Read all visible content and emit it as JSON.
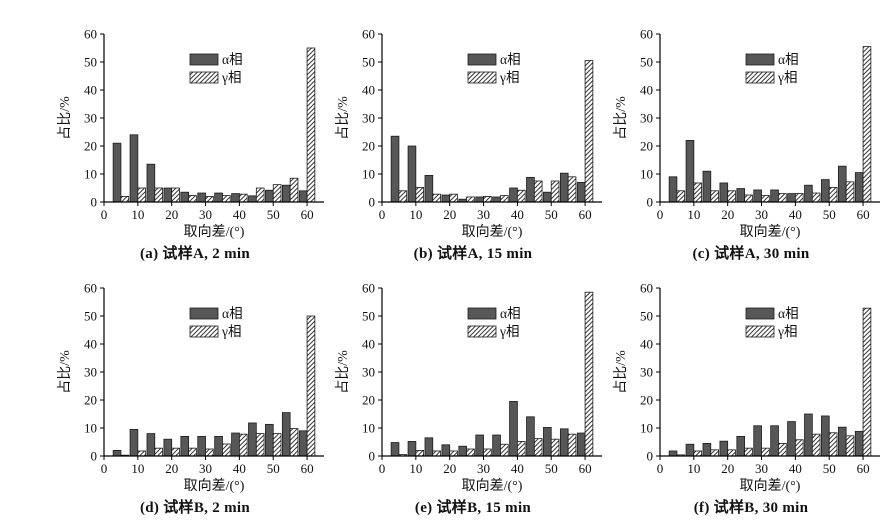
{
  "figure": {
    "background": "#ffffff",
    "colors": {
      "alpha_fill": "#575757",
      "bar_stroke": "#1c1c1c",
      "hatch_fill": "#ffffff",
      "hatch_line": "#3a3a3a",
      "axis": "#000000",
      "text": "#111111"
    },
    "legend": {
      "alpha_label": "α相",
      "gamma_label": "γ相",
      "position": "upper center"
    }
  },
  "chart_data": [
    {
      "id": "a",
      "type": "bar",
      "caption": "(a) 试样A, 2 min",
      "xlabel": "取向差/(°)",
      "ylabel": "占比/%",
      "xlim": [
        0,
        65
      ],
      "ylim": [
        0,
        60
      ],
      "xticks": [
        0,
        10,
        20,
        30,
        40,
        50,
        60
      ],
      "yticks": [
        0,
        10,
        20,
        30,
        40,
        50,
        60
      ],
      "grid": false,
      "categories": [
        5,
        10,
        15,
        20,
        25,
        30,
        35,
        40,
        45,
        50,
        55,
        60
      ],
      "series": [
        {
          "name": "α相",
          "values": [
            21,
            24,
            13.5,
            5,
            3.5,
            3.2,
            3.2,
            3,
            2.2,
            4.2,
            6,
            4
          ]
        },
        {
          "name": "γ相",
          "values": [
            2,
            5,
            5,
            5,
            2.3,
            2,
            2.3,
            2.8,
            5,
            6.2,
            8.5,
            55
          ]
        }
      ]
    },
    {
      "id": "b",
      "type": "bar",
      "caption": "(b) 试样A, 15 min",
      "xlabel": "取向差/(°)",
      "ylabel": "占比/%",
      "xlim": [
        0,
        65
      ],
      "ylim": [
        0,
        60
      ],
      "xticks": [
        0,
        10,
        20,
        30,
        40,
        50,
        60
      ],
      "yticks": [
        0,
        10,
        20,
        30,
        40,
        50,
        60
      ],
      "grid": false,
      "categories": [
        5,
        10,
        15,
        20,
        25,
        30,
        35,
        40,
        45,
        50,
        55,
        60
      ],
      "series": [
        {
          "name": "α相",
          "values": [
            23.5,
            20,
            9.5,
            2.5,
            1,
            1.8,
            1.8,
            5,
            8.8,
            3.5,
            10.3,
            7
          ]
        },
        {
          "name": "γ相",
          "values": [
            4,
            5.2,
            2.8,
            2.8,
            1.8,
            2,
            2.3,
            4.2,
            7.5,
            7.5,
            9,
            50.5
          ]
        }
      ]
    },
    {
      "id": "c",
      "type": "bar",
      "caption": "(c) 试样A, 30 min",
      "xlabel": "取向差/(°)",
      "ylabel": "占比/%",
      "xlim": [
        0,
        65
      ],
      "ylim": [
        0,
        60
      ],
      "xticks": [
        0,
        10,
        20,
        30,
        40,
        50,
        60
      ],
      "yticks": [
        0,
        10,
        20,
        30,
        40,
        50,
        60
      ],
      "grid": false,
      "categories": [
        5,
        10,
        15,
        20,
        25,
        30,
        35,
        40,
        45,
        50,
        55,
        60
      ],
      "series": [
        {
          "name": "α相",
          "values": [
            9,
            22,
            11,
            6.8,
            4.8,
            4.3,
            4.3,
            3,
            6,
            8,
            12.8,
            10.5
          ]
        },
        {
          "name": "γ相",
          "values": [
            4,
            6.8,
            4,
            4,
            2.5,
            2.3,
            3,
            3,
            3.2,
            5.2,
            7.2,
            55.5
          ]
        }
      ]
    },
    {
      "id": "d",
      "type": "bar",
      "caption": "(d) 试样B, 2 min",
      "xlabel": "取向差/(°)",
      "ylabel": "占比/%",
      "xlim": [
        0,
        65
      ],
      "ylim": [
        0,
        60
      ],
      "xticks": [
        0,
        10,
        20,
        30,
        40,
        50,
        60
      ],
      "yticks": [
        0,
        10,
        20,
        30,
        40,
        50,
        60
      ],
      "grid": false,
      "categories": [
        5,
        10,
        15,
        20,
        25,
        30,
        35,
        40,
        45,
        50,
        55,
        60
      ],
      "series": [
        {
          "name": "α相",
          "values": [
            2,
            9.5,
            8,
            6,
            7,
            7,
            7,
            8.2,
            11.8,
            11.3,
            15.5,
            9
          ]
        },
        {
          "name": "γ相",
          "values": [
            0.3,
            1.8,
            2.8,
            2.8,
            2.8,
            2.5,
            4.3,
            7.8,
            8,
            8,
            9.8,
            50
          ]
        }
      ]
    },
    {
      "id": "e",
      "type": "bar",
      "caption": "(e) 试样B, 15 min",
      "xlabel": "取向差/(°)",
      "ylabel": "占比/%",
      "xlim": [
        0,
        65
      ],
      "ylim": [
        0,
        60
      ],
      "xticks": [
        0,
        10,
        20,
        30,
        40,
        50,
        60
      ],
      "yticks": [
        0,
        10,
        20,
        30,
        40,
        50,
        60
      ],
      "grid": false,
      "categories": [
        5,
        10,
        15,
        20,
        25,
        30,
        35,
        40,
        45,
        50,
        55,
        60
      ],
      "series": [
        {
          "name": "α相",
          "values": [
            4.8,
            5.2,
            6.5,
            4,
            3.5,
            7.5,
            7.5,
            19.5,
            14,
            10.2,
            9.7,
            8.2
          ]
        },
        {
          "name": "γ相",
          "values": [
            0.5,
            2,
            1.8,
            1.8,
            2.5,
            2.5,
            4.2,
            5.2,
            6.2,
            6,
            7.8,
            58.5
          ]
        }
      ]
    },
    {
      "id": "f",
      "type": "bar",
      "caption": "(f) 试样B, 30 min",
      "xlabel": "取向差/(°)",
      "ylabel": "占比/%",
      "xlim": [
        0,
        65
      ],
      "ylim": [
        0,
        60
      ],
      "xticks": [
        0,
        10,
        20,
        30,
        40,
        50,
        60
      ],
      "yticks": [
        0,
        10,
        20,
        30,
        40,
        50,
        60
      ],
      "grid": false,
      "categories": [
        5,
        10,
        15,
        20,
        25,
        30,
        35,
        40,
        45,
        50,
        55,
        60
      ],
      "series": [
        {
          "name": "α相",
          "values": [
            1.8,
            4.2,
            4.5,
            5.3,
            7,
            10.8,
            10.8,
            12.3,
            15,
            14.3,
            10.3,
            8.8
          ]
        },
        {
          "name": "γ相",
          "values": [
            0.4,
            1.8,
            2.2,
            2.2,
            2.8,
            2.8,
            4.5,
            5.8,
            7.8,
            8.3,
            7.2,
            52.8
          ]
        }
      ]
    }
  ]
}
